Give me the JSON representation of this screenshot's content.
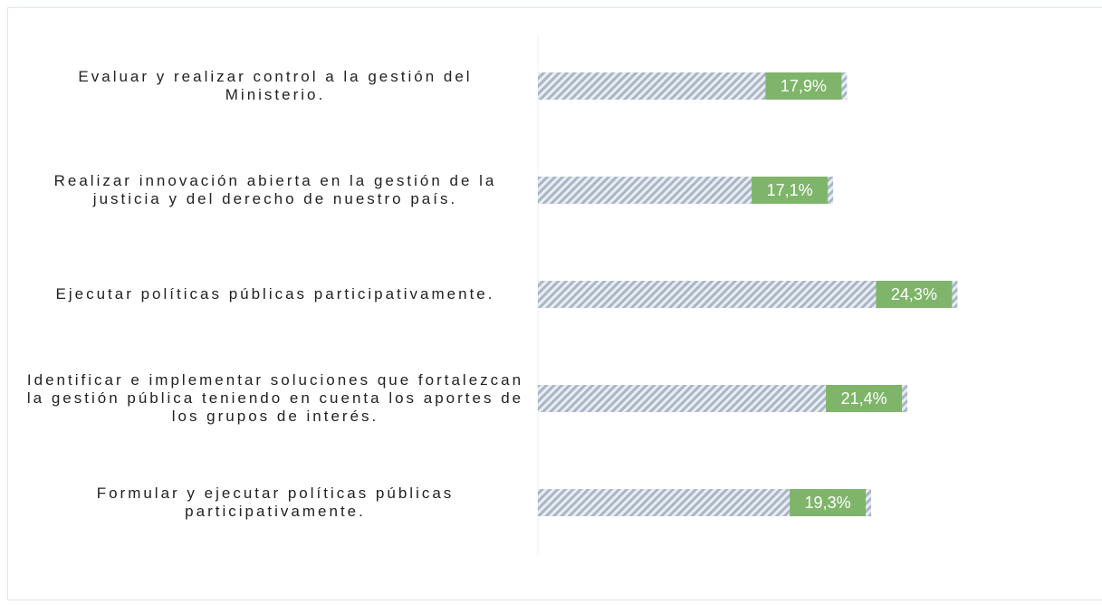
{
  "chart_data": {
    "type": "barh",
    "categories": [
      "Evaluar y realizar control a la gestión del Ministerio.",
      "Realizar innovación abierta en la gestión de la justicia y del derecho de nuestro país.",
      "Ejecutar políticas públicas participativamente.",
      "Identificar e implementar soluciones que fortalezcan la gestión pública teniendo en cuenta los aportes de los grupos de interés.",
      "Formular y ejecutar políticas públicas participativamente."
    ],
    "values": [
      17.9,
      17.1,
      24.3,
      21.4,
      19.3
    ],
    "value_labels": [
      "17,9%",
      "17,1%",
      "24,3%",
      "21,4%",
      "19,3%"
    ],
    "xlim": [
      0,
      32.3
    ],
    "color": "#aab6c6",
    "label_color": "#7fb56a"
  }
}
